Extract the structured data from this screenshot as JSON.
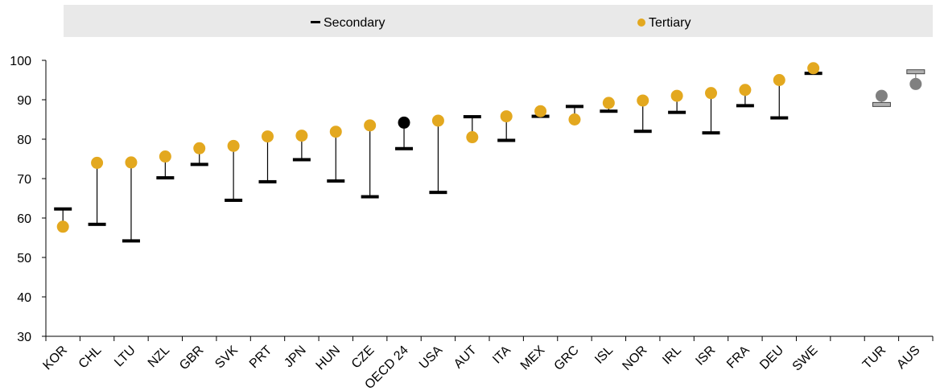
{
  "legend": {
    "secondary_label": "Secondary",
    "tertiary_label": "Tertiary"
  },
  "chart_data": {
    "type": "scatter",
    "ylim": [
      30,
      100
    ],
    "y_ticks": [
      30,
      40,
      50,
      60,
      70,
      80,
      90,
      100
    ],
    "legend_position": "top",
    "grid": false,
    "categories": [
      "KOR",
      "CHL",
      "LTU",
      "NZL",
      "GBR",
      "SVK",
      "PRT",
      "JPN",
      "HUN",
      "CZE",
      "OECD 24",
      "USA",
      "AUT",
      "ITA",
      "MEX",
      "GRC",
      "ISL",
      "NOR",
      "IRL",
      "ISR",
      "FRA",
      "DEU",
      "SWE",
      "",
      "TUR",
      "AUS"
    ],
    "series": [
      {
        "name": "Secondary",
        "marker": "dash",
        "values": [
          62.3,
          58.4,
          54.2,
          70.2,
          73.6,
          64.5,
          69.2,
          74.8,
          69.4,
          65.4,
          77.6,
          66.5,
          85.7,
          79.7,
          85.8,
          88.3,
          87.1,
          82.0,
          86.8,
          81.6,
          88.5,
          85.4,
          96.7,
          null,
          88.7,
          97.0
        ]
      },
      {
        "name": "Tertiary",
        "marker": "circle",
        "values": [
          57.8,
          74.0,
          74.1,
          75.6,
          77.7,
          78.3,
          80.7,
          80.9,
          81.9,
          83.5,
          84.2,
          84.7,
          80.5,
          85.8,
          87.1,
          85.0,
          89.2,
          89.8,
          91.0,
          91.7,
          92.5,
          95.0,
          98.0,
          null,
          91.0,
          94.0
        ]
      }
    ],
    "colors": {
      "tertiary": "#e3a81f",
      "secondary": "#000000",
      "highlight": "#000000",
      "muted": "#808080",
      "legend_bg": "#e9e9e9"
    },
    "highlight_categories": [
      "OECD 24"
    ],
    "muted_categories": [
      "TUR",
      "AUS"
    ]
  }
}
